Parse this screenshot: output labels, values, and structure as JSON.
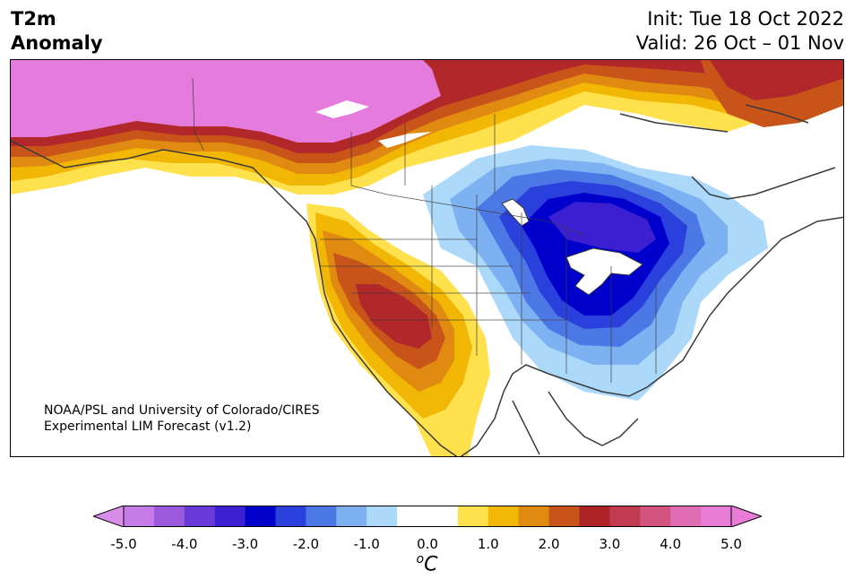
{
  "title": {
    "line1": "T2m",
    "line2": "Anomaly"
  },
  "header_right": {
    "init": "Init: Tue 18 Oct 2022",
    "valid": "Valid: 26 Oct – 01 Nov"
  },
  "credit": {
    "line1": "NOAA/PSL and University of Colorado/CIRES",
    "line2": "Experimental LIM Forecast (v1.2)"
  },
  "colorbar": {
    "unit_sup": "o",
    "unit_base": "C",
    "ticks": [
      "-5.0",
      "-4.0",
      "-3.0",
      "-2.0",
      "-1.0",
      "0.0",
      "1.0",
      "2.0",
      "3.0",
      "4.0",
      "5.0"
    ],
    "colors": [
      "#c77be8",
      "#9b59de",
      "#6a3ad8",
      "#3b1fd0",
      "#0000cc",
      "#2a40dc",
      "#4c78e6",
      "#7eb1f2",
      "#acd9f9",
      "#ffffff",
      "#ffffff",
      "#ffe14d",
      "#f2b705",
      "#e08a12",
      "#c8541a",
      "#ad2326",
      "#c23a50",
      "#d2537d",
      "#e06cb4",
      "#e77bd6"
    ],
    "under_color": "#d98cea",
    "over_color": "#e77bd6"
  },
  "anomaly_colors": {
    "pink": "#e57bdc",
    "magenta": "#cf5a93",
    "dark_red": "#b1272a",
    "red_orange": "#c8541a",
    "orange": "#e08a12",
    "gold": "#f2b705",
    "yellow": "#ffe14d",
    "pale_blue": "#acd9f9",
    "light_blue": "#7eb1f2",
    "mid_blue": "#4c78e6",
    "blue": "#2a40dc",
    "deep_blue": "#0000cc",
    "indigo": "#3b1fd0",
    "outline": "#3a3a3a"
  }
}
